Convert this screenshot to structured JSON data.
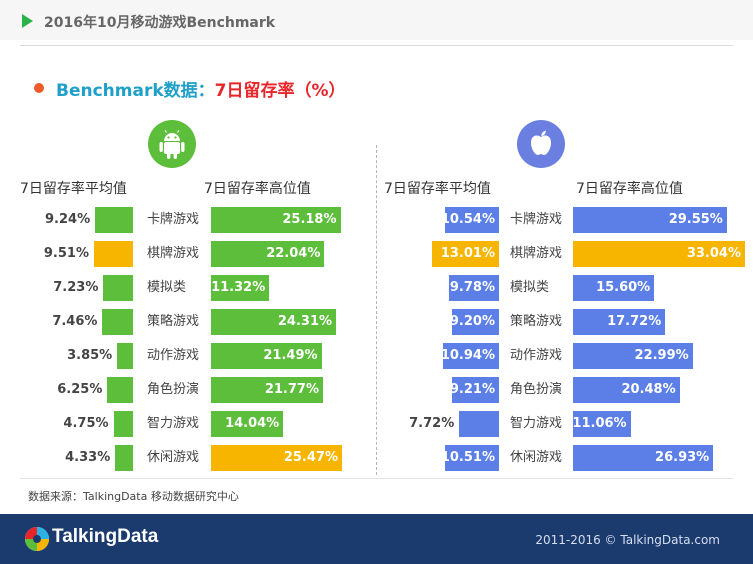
{
  "header": {
    "title": "2016年10月移动游戏Benchmark"
  },
  "subtitle": {
    "prefix": "Benchmark数据：",
    "highlight": "7日留存率（%）"
  },
  "source": "数据来源：TalkingData 移动数据研究中心",
  "footer": {
    "logo_text": "TalkingData",
    "copyright": "2011-2016 © TalkingData.com"
  },
  "colors": {
    "android_green": "#5cbe3a",
    "ios_blue": "#5b7fe6",
    "highlight_yellow": "#f7b500",
    "android_icon_bg": "#5cbe3a",
    "ios_icon_bg": "#6b7fe0"
  },
  "chart_data": [
    {
      "type": "bar",
      "platform": "android",
      "icon": "android-icon",
      "categories": [
        "卡牌游戏",
        "棋牌游戏",
        "模拟类",
        "策略游戏",
        "动作游戏",
        "角色扮演",
        "智力游戏",
        "休闲游戏"
      ],
      "avg_label": "7日留存率平均值",
      "high_label": "7日留存率高位值",
      "avg_values": [
        9.24,
        9.51,
        7.23,
        7.46,
        3.85,
        6.25,
        4.75,
        4.33
      ],
      "avg_labels": [
        "9.24%",
        "9.51%",
        "7.23%",
        "7.46%",
        "3.85%",
        "6.25%",
        "4.75%",
        "4.33%"
      ],
      "high_values": [
        25.18,
        22.04,
        11.32,
        24.31,
        21.49,
        21.77,
        14.04,
        25.47
      ],
      "high_labels": [
        "25.18%",
        "22.04%",
        "11.32%",
        "24.31%",
        "21.49%",
        "21.77%",
        "14.04%",
        "25.47%"
      ],
      "avg_max_index": 1,
      "high_max_index": 7
    },
    {
      "type": "bar",
      "platform": "ios",
      "icon": "apple-icon",
      "categories": [
        "卡牌游戏",
        "棋牌游戏",
        "模拟类",
        "策略游戏",
        "动作游戏",
        "角色扮演",
        "智力游戏",
        "休闲游戏"
      ],
      "avg_label": "7日留存率平均值",
      "high_label": "7日留存率高位值",
      "avg_values": [
        10.54,
        13.01,
        9.78,
        9.2,
        10.94,
        9.21,
        7.72,
        10.51
      ],
      "avg_labels": [
        "10.54%",
        "13.01%",
        "9.78%",
        "9.20%",
        "10.94%",
        "9.21%",
        "7.72%",
        "10.51%"
      ],
      "high_values": [
        29.55,
        33.04,
        15.6,
        17.72,
        22.99,
        20.48,
        11.06,
        26.93
      ],
      "high_labels": [
        "29.55%",
        "33.04%",
        "15.60%",
        "17.72%",
        "22.99%",
        "20.48%",
        "11.06%",
        "26.93%"
      ],
      "avg_max_index": 1,
      "high_max_index": 1
    }
  ]
}
